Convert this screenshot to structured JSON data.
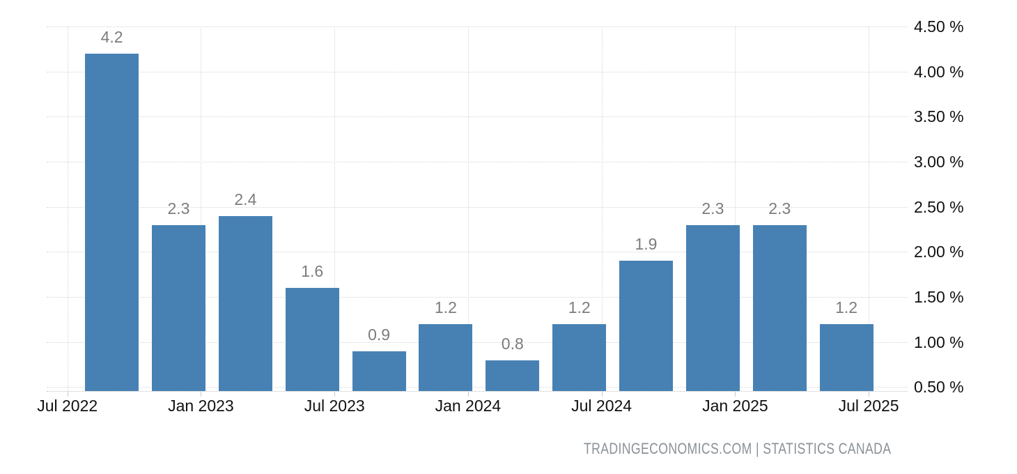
{
  "chart_data": {
    "type": "bar",
    "title": "",
    "xlabel": "",
    "ylabel": "",
    "legend": null,
    "grid": "dotted",
    "bar_color": "#4781b4",
    "values": [
      4.2,
      2.3,
      2.4,
      1.6,
      0.9,
      1.2,
      0.8,
      1.2,
      1.9,
      2.3,
      2.3,
      1.2
    ],
    "value_labels": [
      "4.2",
      "2.3",
      "2.4",
      "1.6",
      "0.9",
      "1.2",
      "0.8",
      "1.2",
      "1.9",
      "2.3",
      "2.3",
      "1.2"
    ],
    "bar_month_offsets": [
      2,
      5,
      8,
      11,
      14,
      17,
      20,
      23,
      26,
      29,
      32,
      35
    ],
    "bar_width_months": 2.4,
    "x_ticks": [
      {
        "label": "Jul 2022",
        "month_offset": 0
      },
      {
        "label": "Jan 2023",
        "month_offset": 6
      },
      {
        "label": "Jul 2023",
        "month_offset": 12
      },
      {
        "label": "Jan 2024",
        "month_offset": 18
      },
      {
        "label": "Jul 2024",
        "month_offset": 24
      },
      {
        "label": "Jan 2025",
        "month_offset": 30
      },
      {
        "label": "Jul 2025",
        "month_offset": 36
      }
    ],
    "y_ticks": [
      {
        "label": "4.50 %",
        "value": 4.5
      },
      {
        "label": "4.00 %",
        "value": 4.0
      },
      {
        "label": "3.50 %",
        "value": 3.5
      },
      {
        "label": "3.00 %",
        "value": 3.0
      },
      {
        "label": "2.50 %",
        "value": 2.5
      },
      {
        "label": "2.00 %",
        "value": 2.0
      },
      {
        "label": "1.50 %",
        "value": 1.5
      },
      {
        "label": "1.00 %",
        "value": 1.0
      },
      {
        "label": "0.50 %",
        "value": 0.5
      }
    ],
    "ylim": [
      0.456,
      4.5
    ],
    "xlim_months": [
      -0.93,
      37.75
    ],
    "legend_position": "none"
  },
  "footer": {
    "attribution": "TRADINGECONOMICS.COM | STATISTICS CANADA"
  },
  "colors": {
    "bar": "#4781b4",
    "gridline": "#d5d5d5",
    "axis_line": "#c2c2c2",
    "axis_label": "#111111",
    "value_label": "#7b7c7f",
    "attribution": "#8a9197",
    "background": "#ffffff"
  }
}
